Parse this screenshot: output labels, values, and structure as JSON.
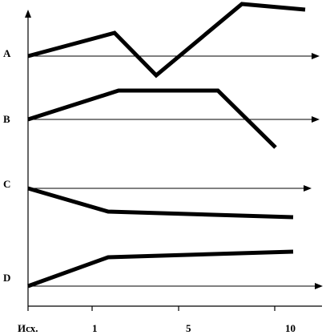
{
  "chart_data": {
    "type": "line",
    "title": "",
    "xlabel": "",
    "ylabel": "",
    "x_tick_labels": [
      "Исх.",
      "1",
      "5",
      "10"
    ],
    "rows": [
      {
        "label": "A"
      },
      {
        "label": "B"
      },
      {
        "label": "C"
      },
      {
        "label": "D"
      }
    ],
    "grid": false,
    "legend": "none"
  },
  "colors": {
    "line": "#000000",
    "background": "#ffffff"
  }
}
